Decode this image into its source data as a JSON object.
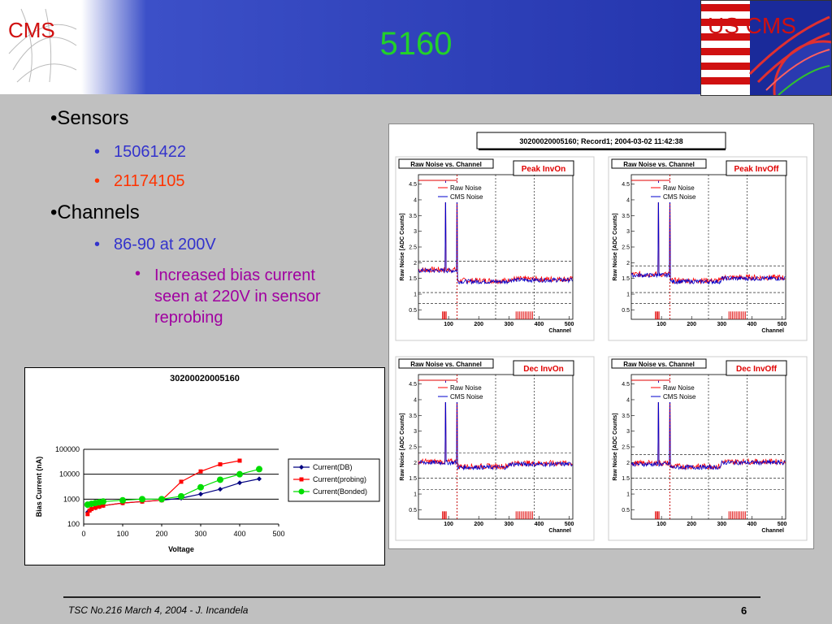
{
  "header": {
    "title": "5160",
    "logo_left_text": "CMS",
    "logo_right_text": "US CMS"
  },
  "bullets": {
    "sensors": "•Sensors",
    "sensor_ids": [
      {
        "text": "15061422",
        "color": "#3333cc"
      },
      {
        "text": "21174105",
        "color": "#ff3300"
      }
    ],
    "channels": "•Channels",
    "channel_range": "86-90 at 200V",
    "note": [
      "Increased bias current",
      "seen at 220V in sensor",
      "reprobing"
    ],
    "sub_bullet": "•"
  },
  "footer": {
    "text": "TSC No.216 March 4, 2004 - J. Incandela",
    "page": "6"
  },
  "chart_data": [
    {
      "type": "line",
      "title": "30200020005160",
      "xlabel": "Voltage",
      "ylabel": "Bias Current (nA)",
      "xlim": [
        0,
        500
      ],
      "ylim": [
        100,
        100000
      ],
      "yscale": "log",
      "x_ticks": [
        "0",
        "100",
        "200",
        "300",
        "400",
        "500"
      ],
      "y_ticks": [
        "100",
        "1000",
        "10000",
        "100000"
      ],
      "legend_position": "right",
      "series": [
        {
          "name": "Current(DB)",
          "color": "#000080",
          "marker": "diamond",
          "x": [
            10,
            20,
            30,
            40,
            50,
            100,
            150,
            200,
            250,
            300,
            350,
            400,
            450
          ],
          "y": [
            300,
            400,
            450,
            500,
            550,
            700,
            800,
            900,
            1100,
            1600,
            2500,
            4500,
            6500
          ]
        },
        {
          "name": "Current(probing)",
          "color": "#ff0000",
          "marker": "square",
          "x": [
            10,
            15,
            20,
            30,
            40,
            50,
            100,
            150,
            200,
            250,
            300,
            350,
            400
          ],
          "y": [
            250,
            350,
            400,
            450,
            500,
            550,
            700,
            800,
            900,
            5000,
            13000,
            25000,
            35000
          ]
        },
        {
          "name": "Current(Bonded)",
          "color": "#00dd00",
          "marker": "circle",
          "x": [
            10,
            20,
            30,
            40,
            50,
            100,
            150,
            200,
            250,
            300,
            350,
            400,
            450
          ],
          "y": [
            600,
            650,
            700,
            750,
            800,
            900,
            1000,
            1000,
            1300,
            3000,
            6000,
            10000,
            16000
          ]
        }
      ]
    },
    {
      "type": "line",
      "title": "30200020005160; Record1; 2004-03-02 11:42:38",
      "panels": [
        {
          "subtitle": "Raw Noise vs. Channel",
          "mode": "Peak InvOn",
          "ylabel": "Raw Noise [ADC Counts]",
          "xlabel": "Channel",
          "baseline": [
            1.75,
            1.4,
            1.45
          ],
          "spike_y": 4.6
        },
        {
          "subtitle": "Raw Noise vs. Channel",
          "mode": "Peak InvOff",
          "ylabel": "Raw Noise [ADC Counts]",
          "xlabel": "Channel",
          "baseline": [
            1.6,
            1.4,
            1.5
          ],
          "spike_y": 4.6
        },
        {
          "subtitle": "Raw Noise vs. Channel",
          "mode": "Dec InvOn",
          "ylabel": "Raw Noise [ADC Counts]",
          "xlabel": "Channel",
          "baseline": [
            2.0,
            1.85,
            1.95
          ],
          "spike_y": 4.6
        },
        {
          "subtitle": "Raw Noise vs. Channel",
          "mode": "Dec InvOff",
          "ylabel": "Raw Noise [ADC Counts]",
          "xlabel": "Channel",
          "baseline": [
            1.95,
            1.85,
            2.0
          ],
          "spike_y": 4.6
        }
      ],
      "legend": [
        "Raw Noise",
        "CMS Noise"
      ],
      "series_colors": [
        "#ff0000",
        "#0000cc"
      ],
      "xlim": [
        0,
        512
      ],
      "ylim": [
        0.2,
        4.8
      ],
      "x_ticks": [
        "100",
        "200",
        "300",
        "400",
        "500"
      ],
      "y_ticks": [
        "0.5",
        "1",
        "1.5",
        "2",
        "2.5",
        "3",
        "3.5",
        "4",
        "4.5"
      ],
      "channel_spikes": [
        90,
        128
      ]
    }
  ]
}
